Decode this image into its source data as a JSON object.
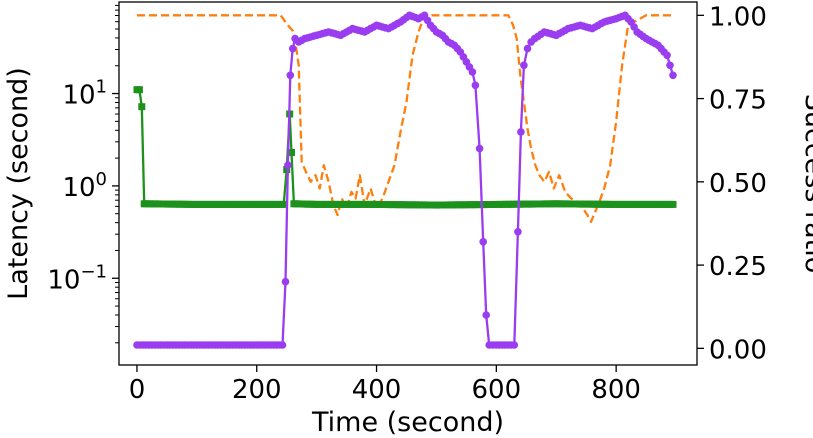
{
  "chart_data": {
    "type": "line",
    "xlabel": "Time (second)",
    "ylabel_left": "Latency (second)",
    "ylabel_right": "Success ratio",
    "xlim": [
      -30,
      935
    ],
    "ylim_left": [
      0.0115,
      98
    ],
    "y_left_scale": "log",
    "ylim_right": [
      -0.05,
      1.04
    ],
    "x_ticks": [
      0,
      200,
      400,
      600,
      800
    ],
    "y_left_ticks": [
      {
        "value": 10,
        "base": "10",
        "exp": "1"
      },
      {
        "value": 1,
        "base": "10",
        "exp": "0"
      },
      {
        "value": 0.1,
        "base": "10",
        "exp": "−1"
      }
    ],
    "y_right_ticks": [
      "0.00",
      "0.25",
      "0.50",
      "0.75",
      "1.00"
    ],
    "colors": {
      "latency": "#1c921c",
      "success": "#9a3cf0",
      "dashed": "#ff7f0e"
    },
    "series": [
      {
        "axis": "left",
        "marker": "square",
        "color": "#1c921c",
        "x": [
          0,
          4,
          8,
          12,
          16,
          100,
          200,
          245,
          250,
          255,
          258,
          262,
          266,
          300,
          400,
          500,
          600,
          700,
          800,
          895
        ],
        "y": [
          11,
          11,
          7.2,
          0.64,
          0.64,
          0.63,
          0.63,
          0.63,
          1.5,
          6,
          2.3,
          0.64,
          0.64,
          0.63,
          0.63,
          0.62,
          0.63,
          0.64,
          0.63,
          0.63
        ]
      },
      {
        "axis": "right",
        "marker": "circle",
        "color": "#9a3cf0",
        "x": [
          0,
          100,
          200,
          243,
          248,
          252,
          256,
          260,
          264,
          270,
          280,
          300,
          320,
          340,
          360,
          380,
          400,
          420,
          440,
          455,
          470,
          480,
          490,
          500,
          510,
          520,
          530,
          540,
          550,
          560,
          565,
          572,
          578,
          583,
          588,
          600,
          620,
          630,
          636,
          641,
          646,
          652,
          658,
          664,
          680,
          700,
          720,
          740,
          760,
          780,
          800,
          815,
          825,
          835,
          850,
          870,
          885,
          895
        ],
        "y": [
          0.01,
          0.01,
          0.01,
          0.01,
          0.2,
          0.55,
          0.82,
          0.9,
          0.93,
          0.92,
          0.93,
          0.94,
          0.95,
          0.94,
          0.96,
          0.95,
          0.97,
          0.96,
          0.98,
          1.0,
          0.99,
          1.0,
          0.97,
          0.95,
          0.94,
          0.92,
          0.91,
          0.89,
          0.86,
          0.83,
          0.79,
          0.6,
          0.32,
          0.1,
          0.01,
          0.01,
          0.01,
          0.01,
          0.35,
          0.65,
          0.85,
          0.9,
          0.92,
          0.93,
          0.95,
          0.94,
          0.96,
          0.97,
          0.96,
          0.98,
          0.99,
          1.0,
          0.98,
          0.95,
          0.93,
          0.91,
          0.88,
          0.82
        ]
      },
      {
        "axis": "right",
        "marker": "none",
        "style": "dashed",
        "color": "#ff7f0e",
        "x": [
          0,
          100,
          200,
          240,
          252,
          262,
          270,
          275,
          282,
          290,
          298,
          305,
          312,
          320,
          328,
          335,
          342,
          350,
          358,
          365,
          372,
          380,
          390,
          400,
          410,
          420,
          430,
          440,
          450,
          460,
          470,
          480,
          500,
          550,
          600,
          620,
          628,
          634,
          640,
          646,
          652,
          658,
          665,
          672,
          680,
          688,
          696,
          705,
          715,
          725,
          735,
          745,
          752,
          758,
          765,
          772,
          780,
          790,
          800,
          810,
          820,
          850,
          895
        ],
        "y": [
          1.0,
          1.0,
          1.0,
          1.0,
          0.97,
          0.95,
          0.85,
          0.56,
          0.53,
          0.5,
          0.52,
          0.48,
          0.55,
          0.5,
          0.43,
          0.4,
          0.45,
          0.42,
          0.47,
          0.45,
          0.52,
          0.43,
          0.48,
          0.42,
          0.45,
          0.5,
          0.55,
          0.65,
          0.74,
          0.88,
          0.95,
          1.0,
          1.0,
          1.0,
          1.0,
          1.0,
          0.97,
          0.93,
          0.82,
          0.74,
          0.66,
          0.6,
          0.55,
          0.52,
          0.5,
          0.53,
          0.48,
          0.52,
          0.47,
          0.45,
          0.44,
          0.42,
          0.4,
          0.38,
          0.41,
          0.44,
          0.48,
          0.55,
          0.68,
          0.85,
          0.97,
          1.0,
          1.0
        ]
      }
    ]
  }
}
